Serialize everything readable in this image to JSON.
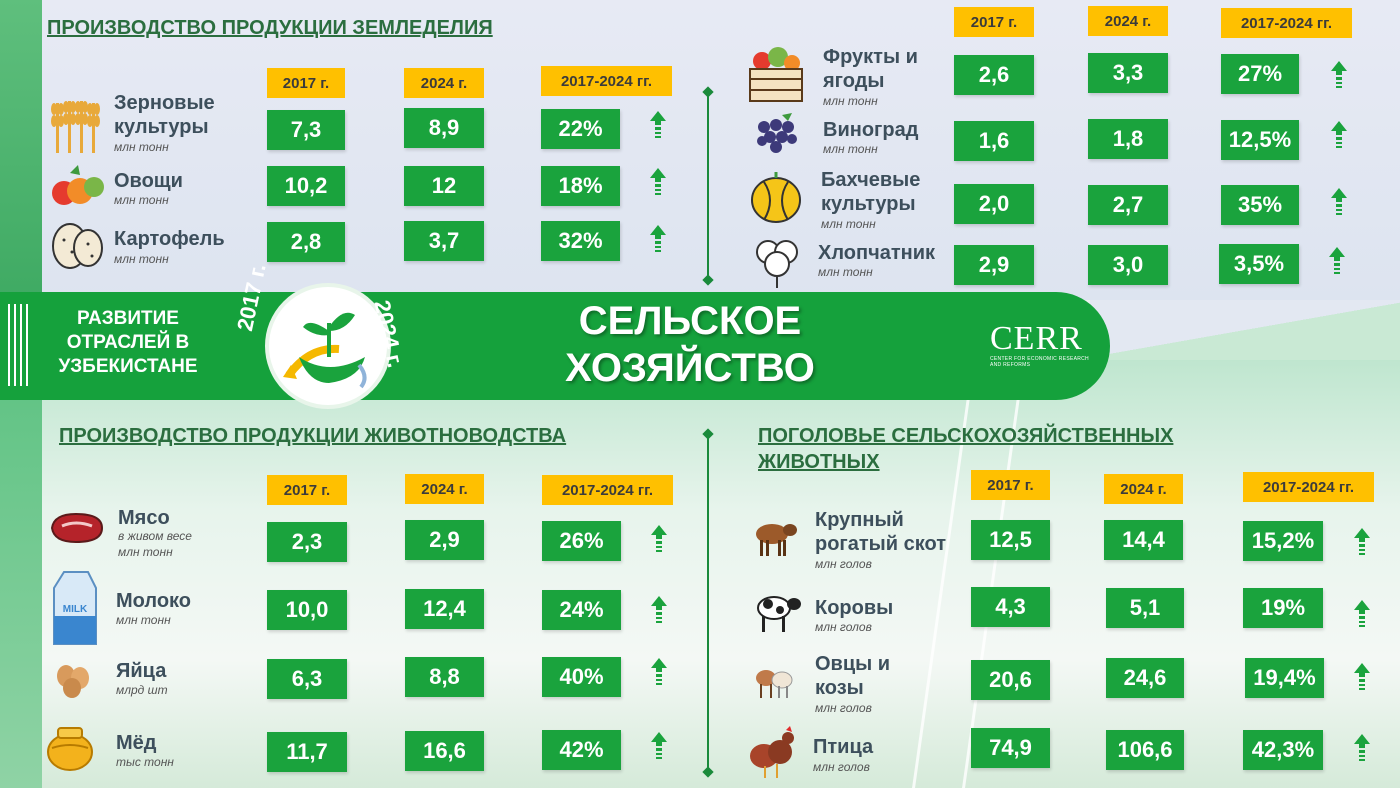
{
  "band": {
    "subtitle": "РАЗВИТИЕ ОТРАСЛЕЙ В УЗБЕКИСТАНЕ",
    "title": "СЕЛЬСКОЕ ХОЗЯЙСТВО",
    "year_left": "2017 г.",
    "year_right": "2024 г.",
    "logo_name": "CERR",
    "logo_tagline": "CENTER FOR ECONOMIC RESEARCH AND REFORMS"
  },
  "headers": {
    "y2017": "2017 г.",
    "y2024": "2024 г.",
    "change": "2017-2024 гг."
  },
  "crops": {
    "title": "ПРОИЗВОДСТВО ПРОДУКЦИИ ЗЕМЛЕДЕЛИЯ",
    "rows": [
      {
        "label": "Зерновые культуры",
        "unit": "млн тонн",
        "v2017": "7,3",
        "v2024": "8,9",
        "change": "22%",
        "icon": "wheat-icon"
      },
      {
        "label": "Овощи",
        "unit": "млн тонн",
        "v2017": "10,2",
        "v2024": "12",
        "change": "18%",
        "icon": "vegetables-icon"
      },
      {
        "label": "Картофель",
        "unit": "млн тонн",
        "v2017": "2,8",
        "v2024": "3,7",
        "change": "32%",
        "icon": "potato-icon"
      }
    ],
    "rows_right": [
      {
        "label": "Фрукты и ягоды",
        "unit": "млн тонн",
        "v2017": "2,6",
        "v2024": "3,3",
        "change": "27%",
        "icon": "fruit-basket-icon"
      },
      {
        "label": "Виноград",
        "unit": "млн тонн",
        "v2017": "1,6",
        "v2024": "1,8",
        "change": "12,5%",
        "icon": "grapes-icon"
      },
      {
        "label": "Бахчевые культуры",
        "unit": "млн тонн",
        "v2017": "2,0",
        "v2024": "2,7",
        "change": "35%",
        "icon": "melon-icon"
      },
      {
        "label": "Хлопчатник",
        "unit": "млн тонн",
        "v2017": "2,9",
        "v2024": "3,0",
        "change": "3,5%",
        "icon": "cotton-icon"
      }
    ]
  },
  "livestock": {
    "title": "ПРОИЗВОДСТВО ПРОДУКЦИИ ЖИВОТНОВОДСТВА",
    "rows": [
      {
        "label": "Мясо",
        "unit_line1": "в живом весе",
        "unit": "млн тонн",
        "v2017": "2,3",
        "v2024": "2,9",
        "change": "26%",
        "icon": "meat-icon"
      },
      {
        "label": "Молоко",
        "unit": "млн тонн",
        "v2017": "10,0",
        "v2024": "12,4",
        "change": "24%",
        "icon": "milk-icon",
        "icon_text": "MILK"
      },
      {
        "label": "Яйца",
        "unit": "млрд шт",
        "v2017": "6,3",
        "v2024": "8,8",
        "change": "40%",
        "icon": "eggs-icon"
      },
      {
        "label": "Мёд",
        "unit": "тыс тонн",
        "v2017": "11,7",
        "v2024": "16,6",
        "change": "42%",
        "icon": "honey-icon"
      }
    ]
  },
  "herd": {
    "title": "ПОГОЛОВЬЕ СЕЛЬСКОХОЗЯЙСТВЕННЫХ ЖИВОТНЫХ",
    "rows": [
      {
        "label": "Крупный рогатый скот",
        "unit": "млн голов",
        "v2017": "12,5",
        "v2024": "14,4",
        "change": "15,2%",
        "icon": "cattle-icon"
      },
      {
        "label": "Коровы",
        "unit": "млн голов",
        "v2017": "4,3",
        "v2024": "5,1",
        "change": "19%",
        "icon": "cow-icon"
      },
      {
        "label": "Овцы и козы",
        "unit": "млн голов",
        "v2017": "20,6",
        "v2024": "24,6",
        "change": "19,4%",
        "icon": "sheep-goat-icon"
      },
      {
        "label": "Птица",
        "unit": "млн голов",
        "v2017": "74,9",
        "v2024": "106,6",
        "change": "42,3%",
        "icon": "poultry-icon"
      }
    ]
  },
  "colors": {
    "green": "#1aa33d",
    "yellow": "#ffc000",
    "heading": "#2b6e3f"
  }
}
